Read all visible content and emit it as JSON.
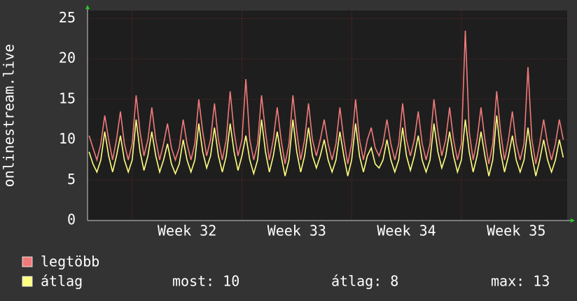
{
  "chart_data": {
    "type": "line",
    "ylabel": "onlinestream.live",
    "x": [
      0,
      1,
      2,
      3,
      4,
      5,
      6,
      7,
      8,
      9,
      10,
      11,
      12,
      13,
      14,
      15,
      16,
      17,
      18,
      19,
      20,
      21,
      22,
      23,
      24,
      25,
      26,
      27,
      28,
      29,
      30,
      31,
      32,
      33,
      34,
      35,
      36,
      37,
      38,
      39,
      40,
      41,
      42,
      43,
      44,
      45,
      46,
      47,
      48,
      49,
      50,
      51,
      52,
      53,
      54,
      55,
      56,
      57,
      58,
      59,
      60,
      61,
      62,
      63,
      64,
      65,
      66,
      67,
      68,
      69,
      70,
      71,
      72,
      73,
      74,
      75,
      76,
      77,
      78,
      79,
      80,
      81,
      82,
      83,
      84,
      85,
      86,
      87,
      88,
      89,
      90,
      91,
      92,
      93,
      94,
      95,
      96,
      97,
      98,
      99,
      100,
      101,
      102,
      103,
      104,
      105,
      106,
      107,
      108,
      109,
      110,
      111,
      112,
      113,
      114,
      115,
      116,
      117,
      118,
      119,
      120,
      121
    ],
    "xlim": [
      -0.4,
      122
    ],
    "xticks": [
      {
        "value": 25,
        "label": "Week 32"
      },
      {
        "value": 53,
        "label": "Week 33"
      },
      {
        "value": 81,
        "label": "Week 34"
      },
      {
        "value": 109,
        "label": "Week 35"
      }
    ],
    "xgrid": [
      11,
      39,
      67,
      95
    ],
    "ylim": [
      0,
      26
    ],
    "yticks": [
      0,
      5,
      10,
      15,
      20,
      25
    ],
    "grid": true,
    "series": [
      {
        "name": "legtöbb",
        "color": "#f07a7a",
        "values": [
          10.5,
          9,
          7.5,
          9.5,
          13,
          10,
          7.5,
          10,
          13.5,
          9.5,
          7.5,
          9.5,
          15.5,
          11,
          8,
          10,
          14,
          10,
          7.5,
          9.5,
          12,
          9,
          7.5,
          9,
          12.5,
          9.5,
          7.5,
          9.5,
          15,
          11,
          8,
          10,
          14.5,
          10,
          7.5,
          10,
          16,
          11,
          8,
          10,
          17.5,
          10,
          7.5,
          9.5,
          15.5,
          11,
          7.5,
          10,
          14,
          10,
          7,
          9.5,
          15.5,
          11,
          7.5,
          10,
          14.5,
          10,
          8,
          10,
          12.5,
          9.5,
          7.5,
          9.5,
          14,
          10,
          7,
          9.5,
          15,
          10,
          7.5,
          10,
          11.5,
          9,
          8,
          9.5,
          12.5,
          9.5,
          7.5,
          9.5,
          14.5,
          10,
          8,
          10,
          13.5,
          9.5,
          7.5,
          9.5,
          15,
          11,
          8,
          10,
          14,
          10,
          7.5,
          9.5,
          23.5,
          11,
          7.5,
          10,
          14,
          10,
          7,
          9.5,
          16,
          11,
          7.5,
          10,
          13.5,
          9.5,
          7.5,
          9.5,
          19,
          10,
          7,
          9.5,
          12.5,
          9.5,
          7.5,
          9.5,
          12.5,
          10
        ]
      },
      {
        "name": "átlag",
        "color": "#ffff80",
        "values": [
          8.5,
          7,
          6,
          7.5,
          11,
          8,
          6,
          8,
          10.5,
          7.5,
          6,
          7.5,
          12.5,
          8.5,
          6.2,
          8,
          11,
          8,
          6,
          7.5,
          9.5,
          7,
          5.8,
          7,
          10,
          7.5,
          6,
          7.5,
          12,
          8.5,
          6.5,
          8,
          11.5,
          8,
          6,
          8,
          12,
          8.5,
          6.2,
          8,
          10.5,
          7.5,
          5.8,
          7.5,
          12.5,
          8.5,
          6,
          8,
          11,
          8,
          5.5,
          7.5,
          12.5,
          8.5,
          6,
          8,
          11.5,
          8,
          6.5,
          8,
          10,
          7.5,
          6,
          7.5,
          11,
          8,
          5.5,
          7.5,
          12,
          8,
          6,
          8,
          9,
          7,
          6.5,
          7.5,
          10,
          7.5,
          6,
          7.5,
          11.5,
          8,
          6.2,
          8,
          10.5,
          7.5,
          6,
          7.5,
          12,
          8.5,
          6.5,
          8,
          11,
          8,
          6,
          7.5,
          12.5,
          8.5,
          6,
          8,
          11,
          8,
          5.5,
          7.5,
          13,
          8.5,
          6,
          8,
          10.5,
          7.5,
          6,
          7.5,
          11.5,
          8,
          5.5,
          7.5,
          10,
          7.5,
          6,
          7.5,
          10,
          7.8
        ]
      }
    ],
    "stats": [
      {
        "label": "most:",
        "value": 10
      },
      {
        "label": "átlag:",
        "value": 8
      },
      {
        "label": "max:",
        "value": 13
      }
    ]
  }
}
